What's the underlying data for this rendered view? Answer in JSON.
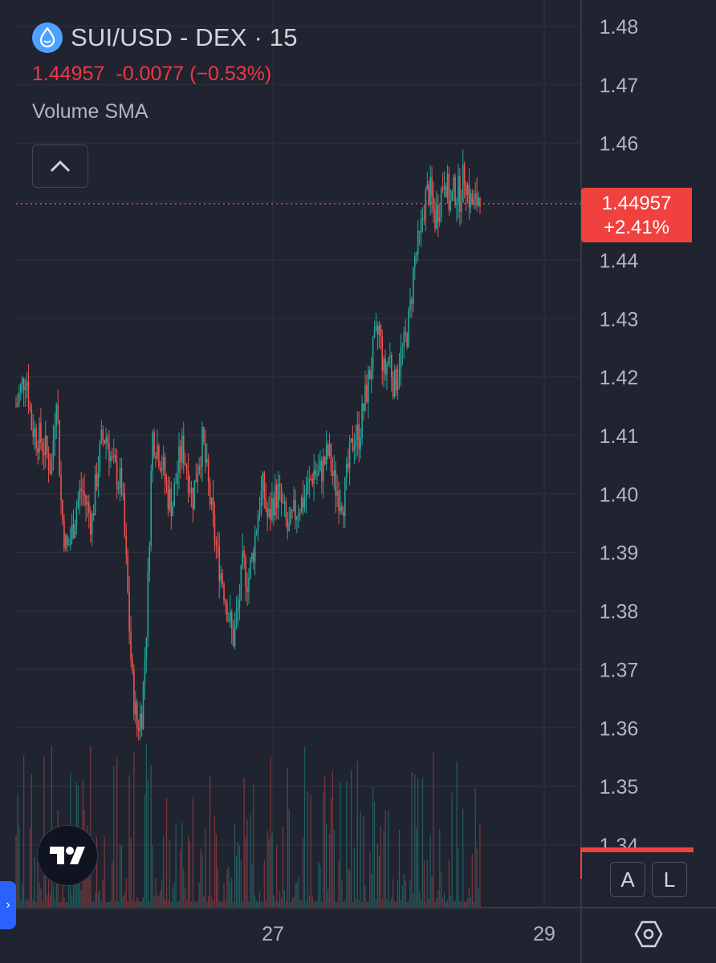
{
  "header": {
    "symbol": "SUI/USD - DEX · 15",
    "last_price": "1.44957",
    "change": "-0.0077",
    "change_pct": "(−0.53%)",
    "indicator": "Volume SMA"
  },
  "price_tag": {
    "price": "1.44957",
    "change_pct": "+2.41%"
  },
  "buttons": {
    "auto_label": "A",
    "log_label": "L"
  },
  "icons": {
    "logo": "sui-logo-icon",
    "collapse": "chevron-up-icon",
    "tradingview": "tradingview-logo-icon",
    "side": "chevron-right-icon",
    "settings": "hexagon-settings-icon"
  },
  "colors": {
    "background": "#1f2430",
    "up": "#26a69a",
    "down": "#ef5350",
    "price_line": "#f0413f",
    "grid": "#2a2e39",
    "text": "#b2b5be"
  },
  "chart_data": {
    "type": "candlestick",
    "y_ticks": [
      "1.48",
      "1.47",
      "1.46",
      "1.45",
      "1.44",
      "1.43",
      "1.42",
      "1.41",
      "1.40",
      "1.39",
      "1.38",
      "1.37",
      "1.36",
      "1.35",
      "1.34"
    ],
    "x_ticks": [
      "27",
      "29"
    ],
    "ylim": [
      1.335,
      1.483
    ],
    "last_price": 1.44957,
    "close_path": [
      1.415,
      1.418,
      1.421,
      1.412,
      1.41,
      1.409,
      1.407,
      1.404,
      1.418,
      1.397,
      1.39,
      1.393,
      1.398,
      1.401,
      1.398,
      1.395,
      1.403,
      1.409,
      1.41,
      1.405,
      1.403,
      1.401,
      1.385,
      1.368,
      1.36,
      1.363,
      1.38,
      1.41,
      1.408,
      1.405,
      1.4,
      1.398,
      1.404,
      1.408,
      1.404,
      1.399,
      1.405,
      1.409,
      1.402,
      1.395,
      1.389,
      1.385,
      1.38,
      1.375,
      1.38,
      1.388,
      1.385,
      1.39,
      1.397,
      1.401,
      1.395,
      1.399,
      1.4,
      1.397,
      1.393,
      1.396,
      1.398,
      1.399,
      1.401,
      1.404,
      1.403,
      1.405,
      1.407,
      1.402,
      1.4,
      1.399,
      1.405,
      1.41,
      1.41,
      1.415,
      1.42,
      1.425,
      1.428,
      1.42,
      1.424,
      1.418,
      1.423,
      1.425,
      1.43,
      1.44,
      1.443,
      1.45,
      1.452,
      1.447,
      1.45,
      1.455,
      1.449,
      1.452,
      1.451,
      1.455,
      1.45,
      1.449,
      1.452
    ],
    "volume_note": "Volume histogram along the bottom"
  }
}
